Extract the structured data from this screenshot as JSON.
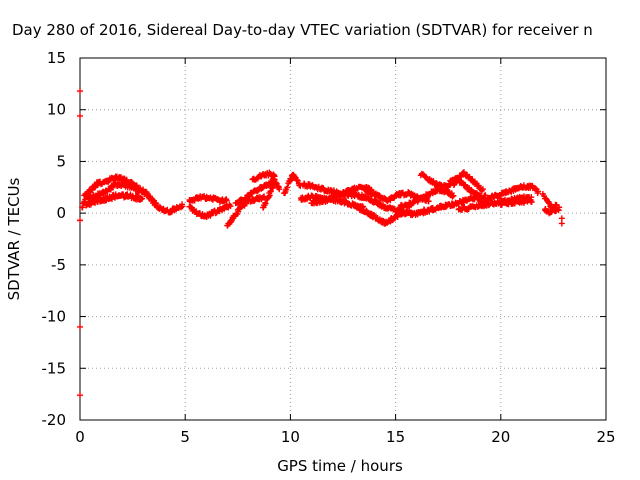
{
  "chart_data": {
    "type": "scatter",
    "title": "Day 280 of 2016, Sidereal Day-to-day VTEC variation (SDTVAR) for receiver n",
    "xlabel": "GPS time / hours",
    "ylabel": "SDTVAR / TECUs",
    "xlim": [
      0,
      25
    ],
    "ylim": [
      -20,
      15
    ],
    "xticks": [
      "0",
      "5",
      "10",
      "15",
      "20",
      "25"
    ],
    "yticks": [
      "15",
      "10",
      "5",
      "0",
      "-5",
      "-10",
      "-15",
      "-20"
    ],
    "grid": true,
    "series": [
      {
        "color": "#ff0000",
        "marker": "plus",
        "outliers": [
          {
            "x": 0.0,
            "y": 11.8
          },
          {
            "x": 0.0,
            "y": 9.4
          },
          {
            "x": 0.0,
            "y": -0.7
          },
          {
            "x": 0.0,
            "y": -11.0
          },
          {
            "x": 0.0,
            "y": -17.6
          },
          {
            "x": 22.9,
            "y": -0.5
          },
          {
            "x": 22.9,
            "y": -1.0
          }
        ],
        "tracks": [
          {
            "band": 0.4,
            "points": [
              [
                0.1,
                0.5
              ],
              [
                0.4,
                2.0
              ],
              [
                0.8,
                2.8
              ],
              [
                1.3,
                3.2
              ],
              [
                1.8,
                3.4
              ],
              [
                2.3,
                3.0
              ],
              [
                2.8,
                2.4
              ],
              [
                3.2,
                1.8
              ],
              [
                3.5,
                1.0
              ],
              [
                3.7,
                0.6
              ]
            ]
          },
          {
            "band": 0.4,
            "points": [
              [
                0.2,
                1.8
              ],
              [
                0.6,
                1.5
              ],
              [
                1.2,
                2.0
              ],
              [
                1.7,
                2.8
              ],
              [
                2.2,
                2.7
              ],
              [
                2.7,
                2.3
              ],
              [
                3.1,
                1.7
              ]
            ]
          },
          {
            "band": 0.4,
            "points": [
              [
                0.3,
                0.8
              ],
              [
                0.7,
                1.2
              ],
              [
                1.2,
                1.4
              ],
              [
                1.8,
                1.7
              ],
              [
                2.5,
                1.6
              ],
              [
                3.0,
                1.3
              ]
            ]
          },
          {
            "band": 0.3,
            "points": [
              [
                3.6,
                0.8
              ],
              [
                3.9,
                0.3
              ],
              [
                4.3,
                0.2
              ],
              [
                4.6,
                0.5
              ],
              [
                4.9,
                0.8
              ]
            ]
          },
          {
            "band": 0.3,
            "points": [
              [
                5.2,
                0.6
              ],
              [
                5.6,
                -0.1
              ],
              [
                6.0,
                -0.3
              ],
              [
                6.4,
                0.1
              ],
              [
                6.8,
                0.4
              ],
              [
                7.2,
                0.8
              ]
            ]
          },
          {
            "band": 0.3,
            "points": [
              [
                5.2,
                1.2
              ],
              [
                5.7,
                1.5
              ],
              [
                6.2,
                1.5
              ],
              [
                6.6,
                1.2
              ],
              [
                7.0,
                1.3
              ]
            ]
          },
          {
            "band": 0.3,
            "points": [
              [
                7.0,
                -1.2
              ],
              [
                7.3,
                -0.4
              ],
              [
                7.6,
                0.5
              ],
              [
                8.0,
                1.2
              ],
              [
                8.4,
                1.4
              ],
              [
                8.8,
                1.6
              ]
            ]
          },
          {
            "band": 0.3,
            "points": [
              [
                7.4,
                1.0
              ],
              [
                7.8,
                1.3
              ],
              [
                8.2,
                2.0
              ],
              [
                8.6,
                2.5
              ],
              [
                9.0,
                2.9
              ],
              [
                9.3,
                3.3
              ]
            ]
          },
          {
            "band": 0.3,
            "points": [
              [
                8.2,
                3.2
              ],
              [
                8.6,
                3.6
              ],
              [
                9.0,
                3.8
              ],
              [
                9.3,
                3.5
              ]
            ]
          },
          {
            "band": 0.3,
            "points": [
              [
                8.7,
                0.5
              ],
              [
                8.9,
                1.4
              ],
              [
                9.1,
                2.3
              ],
              [
                9.3,
                3.0
              ],
              [
                9.5,
                2.2
              ]
            ]
          },
          {
            "band": 0.3,
            "points": [
              [
                9.7,
                1.8
              ],
              [
                9.9,
                2.8
              ],
              [
                10.1,
                3.7
              ],
              [
                10.3,
                3.2
              ],
              [
                10.5,
                2.4
              ]
            ]
          },
          {
            "band": 0.3,
            "points": [
              [
                10.5,
                1.4
              ],
              [
                11.0,
                1.6
              ],
              [
                11.5,
                1.4
              ],
              [
                12.0,
                1.3
              ],
              [
                12.5,
                1.1
              ],
              [
                13.0,
                0.8
              ],
              [
                13.5,
                0.6
              ]
            ]
          },
          {
            "band": 0.3,
            "points": [
              [
                10.6,
                2.8
              ],
              [
                11.2,
                2.5
              ],
              [
                11.8,
                2.2
              ],
              [
                12.4,
                1.9
              ],
              [
                13.0,
                1.7
              ],
              [
                13.6,
                1.5
              ]
            ]
          },
          {
            "band": 0.3,
            "points": [
              [
                11.0,
                1.0
              ],
              [
                11.6,
                1.2
              ],
              [
                12.2,
                1.6
              ],
              [
                12.8,
                2.2
              ],
              [
                13.4,
                2.5
              ],
              [
                13.9,
                2.3
              ]
            ]
          },
          {
            "band": 0.3,
            "points": [
              [
                13.0,
                0.8
              ],
              [
                13.6,
                0.1
              ],
              [
                14.1,
                -0.5
              ],
              [
                14.5,
                -1.0
              ],
              [
                14.8,
                -0.6
              ],
              [
                15.2,
                -0.1
              ],
              [
                15.7,
                0.2
              ]
            ]
          },
          {
            "band": 0.3,
            "points": [
              [
                13.4,
                1.7
              ],
              [
                13.9,
                1.2
              ],
              [
                14.4,
                0.7
              ],
              [
                14.9,
                0.3
              ],
              [
                15.4,
                0.0
              ],
              [
                15.9,
                -0.1
              ],
              [
                16.4,
                0.3
              ]
            ]
          },
          {
            "band": 0.3,
            "points": [
              [
                13.6,
                2.2
              ],
              [
                14.1,
                1.7
              ],
              [
                14.6,
                1.2
              ],
              [
                15.1,
                1.8
              ],
              [
                15.6,
                1.9
              ],
              [
                16.1,
                1.5
              ],
              [
                16.6,
                1.2
              ]
            ]
          },
          {
            "band": 0.3,
            "points": [
              [
                15.2,
                0.6
              ],
              [
                15.7,
                0.9
              ],
              [
                16.2,
                1.4
              ],
              [
                16.6,
                1.9
              ],
              [
                17.0,
                2.3
              ],
              [
                17.4,
                2.1
              ],
              [
                17.8,
                1.6
              ]
            ]
          },
          {
            "band": 0.3,
            "points": [
              [
                16.2,
                3.8
              ],
              [
                16.6,
                3.2
              ],
              [
                17.0,
                2.7
              ],
              [
                17.4,
                2.6
              ],
              [
                17.8,
                2.9
              ],
              [
                18.2,
                3.9
              ],
              [
                18.5,
                3.5
              ],
              [
                18.8,
                2.8
              ],
              [
                19.2,
                2.1
              ]
            ]
          },
          {
            "band": 0.3,
            "points": [
              [
                16.3,
                0.1
              ],
              [
                16.8,
                0.4
              ],
              [
                17.3,
                0.7
              ],
              [
                17.8,
                0.9
              ],
              [
                18.3,
                1.2
              ],
              [
                18.8,
                1.5
              ],
              [
                19.3,
                1.6
              ]
            ]
          },
          {
            "band": 0.3,
            "points": [
              [
                17.6,
                3.0
              ],
              [
                17.9,
                3.3
              ],
              [
                18.2,
                2.8
              ],
              [
                18.6,
                2.1
              ],
              [
                19.0,
                1.6
              ]
            ]
          },
          {
            "band": 0.3,
            "points": [
              [
                18.0,
                0.4
              ],
              [
                18.5,
                0.5
              ],
              [
                19.0,
                0.7
              ],
              [
                19.5,
                0.9
              ],
              [
                20.0,
                1.1
              ],
              [
                20.5,
                1.3
              ],
              [
                21.0,
                1.5
              ],
              [
                21.5,
                1.4
              ]
            ]
          },
          {
            "band": 0.3,
            "points": [
              [
                19.0,
                1.1
              ],
              [
                19.5,
                1.5
              ],
              [
                20.0,
                1.8
              ],
              [
                20.5,
                2.2
              ],
              [
                21.0,
                2.6
              ],
              [
                21.5,
                2.5
              ],
              [
                21.8,
                2.0
              ]
            ]
          },
          {
            "band": 0.3,
            "points": [
              [
                20.0,
                0.9
              ],
              [
                20.5,
                1.0
              ],
              [
                21.0,
                1.1
              ],
              [
                21.5,
                1.2
              ]
            ]
          },
          {
            "band": 0.3,
            "points": [
              [
                22.0,
                1.8
              ],
              [
                22.2,
                1.2
              ],
              [
                22.4,
                0.6
              ],
              [
                22.6,
                0.2
              ],
              [
                22.8,
                0.5
              ]
            ]
          },
          {
            "band": 0.3,
            "points": [
              [
                22.1,
                0.4
              ],
              [
                22.3,
                0.0
              ],
              [
                22.5,
                0.5
              ],
              [
                22.7,
                1.0
              ]
            ]
          }
        ]
      }
    ]
  }
}
